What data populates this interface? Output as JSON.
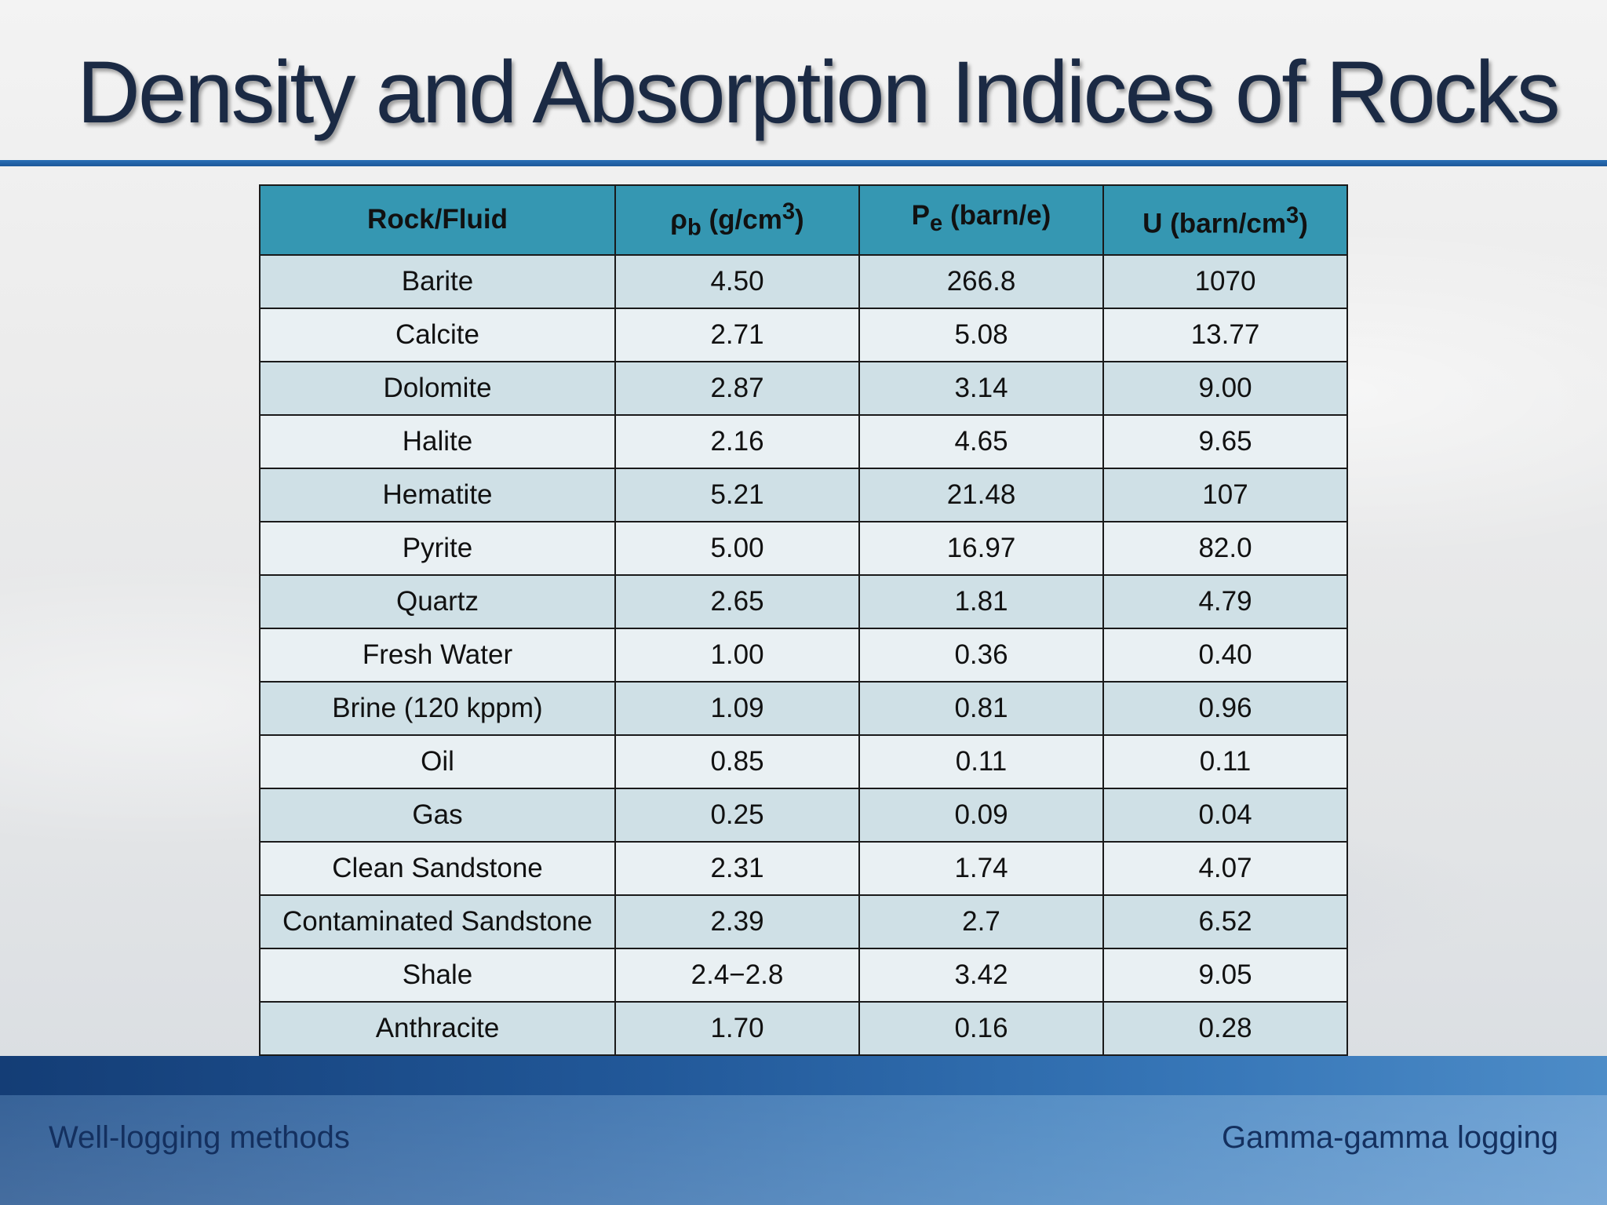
{
  "title": "Density and Absorption Indices of Rocks",
  "table": {
    "headers": {
      "col1": "Rock/Fluid",
      "col2_symbol": "ρ",
      "col2_sub": "b",
      "col2_unit_pre": " (g/cm",
      "col2_sup": "3",
      "col2_unit_post": ")",
      "col3_symbol": "P",
      "col3_sub": "e",
      "col3_unit": " (barn/e)",
      "col4_pre": "U (barn/cm",
      "col4_sup": "3",
      "col4_post": ")"
    },
    "rows": [
      {
        "name": "Barite",
        "rho": "4.50",
        "pe": "266.8",
        "u": "1070"
      },
      {
        "name": "Calcite",
        "rho": "2.71",
        "pe": "5.08",
        "u": "13.77"
      },
      {
        "name": "Dolomite",
        "rho": "2.87",
        "pe": "3.14",
        "u": "9.00"
      },
      {
        "name": "Halite",
        "rho": "2.16",
        "pe": "4.65",
        "u": "9.65"
      },
      {
        "name": "Hematite",
        "rho": "5.21",
        "pe": "21.48",
        "u": "107"
      },
      {
        "name": "Pyrite",
        "rho": "5.00",
        "pe": "16.97",
        "u": "82.0"
      },
      {
        "name": "Quartz",
        "rho": "2.65",
        "pe": "1.81",
        "u": "4.79"
      },
      {
        "name": "Fresh Water",
        "rho": "1.00",
        "pe": "0.36",
        "u": "0.40"
      },
      {
        "name": "Brine (120 kppm)",
        "rho": "1.09",
        "pe": "0.81",
        "u": "0.96"
      },
      {
        "name": "Oil",
        "rho": "0.85",
        "pe": "0.11",
        "u": "0.11"
      },
      {
        "name": "Gas",
        "rho": "0.25",
        "pe": "0.09",
        "u": "0.04"
      },
      {
        "name": "Clean Sandstone",
        "rho": "2.31",
        "pe": "1.74",
        "u": "4.07"
      },
      {
        "name": "Contaminated Sandstone",
        "rho": "2.39",
        "pe": "2.7",
        "u": "6.52"
      },
      {
        "name": "Shale",
        "rho": "2.4−2.8",
        "pe": "3.42",
        "u": "9.05"
      },
      {
        "name": "Anthracite",
        "rho": "1.70",
        "pe": "0.16",
        "u": "0.28"
      }
    ]
  },
  "footer": {
    "left": "Well-logging methods",
    "right": "Gamma-gamma logging"
  }
}
